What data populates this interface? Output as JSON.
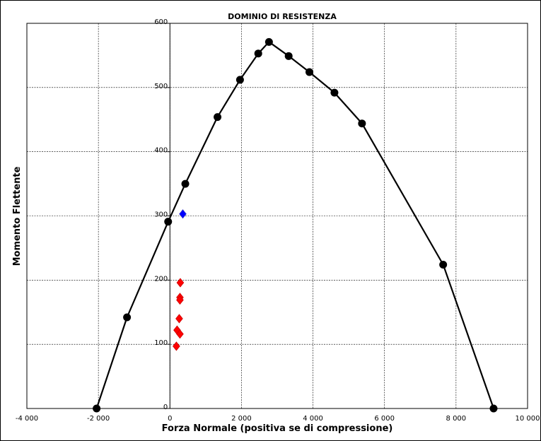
{
  "chart_data": {
    "type": "scatter",
    "title": "DOMINIO DI RESISTENZA",
    "xlabel": "Forza Normale (positiva se di compressione)",
    "ylabel": "Momento Flettente",
    "xlim": [
      -4000,
      10000
    ],
    "ylim": [
      0,
      600
    ],
    "xticks": [
      -4000,
      -2000,
      0,
      2000,
      4000,
      6000,
      8000,
      10000
    ],
    "yticks": [
      0,
      100,
      200,
      300,
      400,
      500,
      600
    ],
    "xtick_labels": [
      "-4 000",
      "-2 000",
      "0",
      "2 000",
      "4 000",
      "6 000",
      "8 000",
      "10 000"
    ],
    "ytick_labels": [
      "0",
      "100",
      "200",
      "300",
      "400",
      "500",
      "600"
    ],
    "grid": true,
    "legend": "none",
    "series": [
      {
        "marker": "circle",
        "line": true,
        "color": "#000000",
        "points": [
          [
            -2050,
            0
          ],
          [
            -1200,
            142
          ],
          [
            -50,
            291
          ],
          [
            430,
            350
          ],
          [
            1330,
            454
          ],
          [
            1960,
            512
          ],
          [
            2470,
            553
          ],
          [
            2770,
            571
          ],
          [
            3320,
            549
          ],
          [
            3900,
            524
          ],
          [
            4600,
            492
          ],
          [
            5370,
            444
          ],
          [
            7640,
            224
          ],
          [
            9050,
            0
          ]
        ]
      },
      {
        "marker": "diamond",
        "line": false,
        "color": "#0000ff",
        "points": [
          [
            360,
            303
          ]
        ]
      },
      {
        "marker": "diamond",
        "line": false,
        "color": "#ff0000",
        "points": [
          [
            290,
            196
          ],
          [
            280,
            173
          ],
          [
            280,
            169
          ],
          [
            260,
            140
          ],
          [
            200,
            122
          ],
          [
            280,
            116
          ],
          [
            180,
            97
          ]
        ]
      }
    ]
  }
}
